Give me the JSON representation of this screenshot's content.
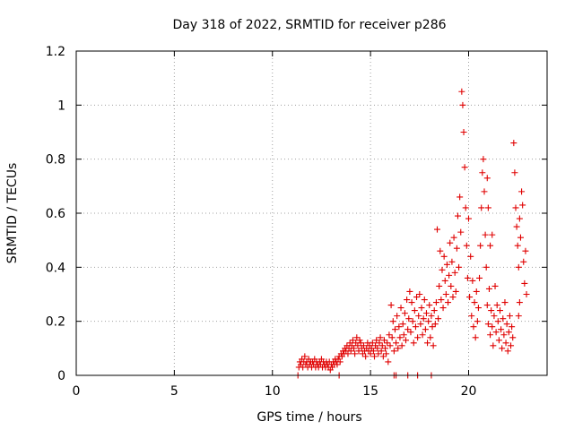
{
  "chart_data": {
    "type": "scatter",
    "title": "Day 318 of 2022, SRMTID for receiver p286",
    "xlabel": "GPS time / hours",
    "ylabel": "SRMTID / TECUs",
    "xlim": [
      0,
      24
    ],
    "ylim": [
      0,
      1.2
    ],
    "xticks": [
      0,
      5,
      10,
      15,
      20
    ],
    "xtick_labels": [
      "0",
      "5",
      "10",
      "15",
      "20"
    ],
    "yticks": [
      0,
      0.2,
      0.4,
      0.6,
      0.8,
      1.0,
      1.2
    ],
    "ytick_labels": [
      "0",
      "0.2",
      "0.4",
      "0.6",
      "0.8",
      "1",
      "1.2"
    ],
    "grid": true,
    "marker": "+",
    "color": "#e00000",
    "series": [
      {
        "name": "SRMTID",
        "points": [
          [
            11.3,
            0.0
          ],
          [
            11.35,
            0.03
          ],
          [
            11.4,
            0.05
          ],
          [
            11.45,
            0.04
          ],
          [
            11.5,
            0.06
          ],
          [
            11.55,
            0.03
          ],
          [
            11.6,
            0.05
          ],
          [
            11.65,
            0.07
          ],
          [
            11.7,
            0.04
          ],
          [
            11.75,
            0.05
          ],
          [
            11.8,
            0.03
          ],
          [
            11.85,
            0.06
          ],
          [
            11.9,
            0.04
          ],
          [
            11.95,
            0.05
          ],
          [
            12.0,
            0.03
          ],
          [
            12.05,
            0.05
          ],
          [
            12.1,
            0.04
          ],
          [
            12.15,
            0.06
          ],
          [
            12.2,
            0.03
          ],
          [
            12.25,
            0.05
          ],
          [
            12.3,
            0.04
          ],
          [
            12.35,
            0.03
          ],
          [
            12.4,
            0.05
          ],
          [
            12.45,
            0.04
          ],
          [
            12.5,
            0.06
          ],
          [
            12.55,
            0.03
          ],
          [
            12.6,
            0.05
          ],
          [
            12.65,
            0.04
          ],
          [
            12.7,
            0.03
          ],
          [
            12.75,
            0.05
          ],
          [
            12.8,
            0.04
          ],
          [
            12.85,
            0.03
          ],
          [
            12.9,
            0.05
          ],
          [
            12.95,
            0.02
          ],
          [
            13.0,
            0.04
          ],
          [
            13.05,
            0.03
          ],
          [
            13.1,
            0.05
          ],
          [
            13.15,
            0.04
          ],
          [
            13.2,
            0.06
          ],
          [
            13.25,
            0.05
          ],
          [
            13.3,
            0.04
          ],
          [
            13.35,
            0.06
          ],
          [
            13.4,
            0.07
          ],
          [
            13.45,
            0.05
          ],
          [
            13.5,
            0.08
          ],
          [
            13.55,
            0.07
          ],
          [
            13.6,
            0.09
          ],
          [
            13.65,
            0.08
          ],
          [
            13.7,
            0.1
          ],
          [
            13.75,
            0.09
          ],
          [
            13.8,
            0.11
          ],
          [
            13.85,
            0.08
          ],
          [
            13.9,
            0.1
          ],
          [
            13.95,
            0.12
          ],
          [
            14.0,
            0.09
          ],
          [
            14.05,
            0.11
          ],
          [
            14.1,
            0.13
          ],
          [
            14.15,
            0.1
          ],
          [
            14.2,
            0.08
          ],
          [
            14.25,
            0.12
          ],
          [
            14.3,
            0.14
          ],
          [
            14.35,
            0.11
          ],
          [
            14.4,
            0.09
          ],
          [
            14.45,
            0.13
          ],
          [
            14.5,
            0.12
          ],
          [
            14.55,
            0.1
          ],
          [
            14.6,
            0.08
          ],
          [
            14.65,
            0.11
          ],
          [
            14.7,
            0.09
          ],
          [
            14.75,
            0.07
          ],
          [
            14.8,
            0.1
          ],
          [
            14.85,
            0.12
          ],
          [
            14.9,
            0.09
          ],
          [
            14.95,
            0.11
          ],
          [
            15.0,
            0.08
          ],
          [
            15.05,
            0.1
          ],
          [
            15.1,
            0.12
          ],
          [
            15.15,
            0.09
          ],
          [
            15.2,
            0.07
          ],
          [
            15.25,
            0.11
          ],
          [
            15.3,
            0.13
          ],
          [
            15.35,
            0.1
          ],
          [
            15.4,
            0.08
          ],
          [
            15.45,
            0.12
          ],
          [
            15.5,
            0.14
          ],
          [
            15.55,
            0.09
          ],
          [
            15.6,
            0.11
          ],
          [
            15.65,
            0.07
          ],
          [
            15.7,
            0.13
          ],
          [
            15.75,
            0.1
          ],
          [
            15.8,
            0.08
          ],
          [
            15.85,
            0.12
          ],
          [
            15.9,
            0.05
          ],
          [
            15.95,
            0.15
          ],
          [
            16.0,
            0.11
          ],
          [
            16.05,
            0.26
          ],
          [
            16.1,
            0.14
          ],
          [
            16.15,
            0.2
          ],
          [
            16.2,
            0.09
          ],
          [
            16.25,
            0.17
          ],
          [
            16.3,
            0.12
          ],
          [
            16.35,
            0.22
          ],
          [
            16.4,
            0.1
          ],
          [
            16.45,
            0.18
          ],
          [
            16.5,
            0.14
          ],
          [
            16.55,
            0.25
          ],
          [
            16.6,
            0.11
          ],
          [
            16.65,
            0.19
          ],
          [
            16.7,
            0.15
          ],
          [
            16.75,
            0.23
          ],
          [
            16.8,
            0.13
          ],
          [
            16.85,
            0.28
          ],
          [
            16.9,
            0.17
          ],
          [
            16.95,
            0.21
          ],
          [
            17.0,
            0.31
          ],
          [
            17.05,
            0.16
          ],
          [
            17.1,
            0.27
          ],
          [
            17.15,
            0.2
          ],
          [
            17.2,
            0.12
          ],
          [
            17.25,
            0.24
          ],
          [
            17.3,
            0.18
          ],
          [
            17.35,
            0.29
          ],
          [
            17.4,
            0.14
          ],
          [
            17.45,
            0.22
          ],
          [
            17.5,
            0.3
          ],
          [
            17.55,
            0.19
          ],
          [
            17.6,
            0.25
          ],
          [
            17.65,
            0.15
          ],
          [
            17.7,
            0.21
          ],
          [
            17.75,
            0.28
          ],
          [
            17.8,
            0.17
          ],
          [
            17.85,
            0.23
          ],
          [
            17.9,
            0.12
          ],
          [
            17.95,
            0.2
          ],
          [
            18.0,
            0.26
          ],
          [
            18.05,
            0.14
          ],
          [
            18.1,
            0.22
          ],
          [
            18.15,
            0.18
          ],
          [
            18.2,
            0.11
          ],
          [
            18.25,
            0.24
          ],
          [
            18.3,
            0.19
          ],
          [
            18.35,
            0.27
          ],
          [
            18.4,
            0.54
          ],
          [
            18.45,
            0.21
          ],
          [
            18.5,
            0.33
          ],
          [
            18.55,
            0.46
          ],
          [
            18.6,
            0.28
          ],
          [
            18.65,
            0.39
          ],
          [
            18.7,
            0.25
          ],
          [
            18.75,
            0.44
          ],
          [
            18.8,
            0.35
          ],
          [
            18.85,
            0.3
          ],
          [
            18.9,
            0.41
          ],
          [
            18.95,
            0.27
          ],
          [
            19.0,
            0.37
          ],
          [
            19.05,
            0.49
          ],
          [
            19.1,
            0.33
          ],
          [
            19.15,
            0.42
          ],
          [
            19.2,
            0.29
          ],
          [
            19.25,
            0.51
          ],
          [
            19.3,
            0.38
          ],
          [
            19.35,
            0.31
          ],
          [
            19.4,
            0.47
          ],
          [
            19.45,
            0.59
          ],
          [
            19.5,
            0.4
          ],
          [
            19.55,
            0.66
          ],
          [
            19.6,
            0.53
          ],
          [
            19.65,
            1.05
          ],
          [
            19.7,
            1.0
          ],
          [
            19.75,
            0.9
          ],
          [
            19.8,
            0.77
          ],
          [
            19.85,
            0.62
          ],
          [
            19.9,
            0.48
          ],
          [
            19.95,
            0.36
          ],
          [
            20.0,
            0.58
          ],
          [
            20.05,
            0.29
          ],
          [
            20.1,
            0.44
          ],
          [
            20.15,
            0.22
          ],
          [
            20.2,
            0.35
          ],
          [
            20.25,
            0.18
          ],
          [
            20.3,
            0.27
          ],
          [
            20.35,
            0.14
          ],
          [
            20.4,
            0.31
          ],
          [
            20.45,
            0.2
          ],
          [
            20.5,
            0.25
          ],
          [
            20.55,
            0.36
          ],
          [
            20.6,
            0.48
          ],
          [
            20.65,
            0.62
          ],
          [
            20.7,
            0.75
          ],
          [
            20.75,
            0.8
          ],
          [
            20.8,
            0.68
          ],
          [
            20.85,
            0.52
          ],
          [
            20.9,
            0.4
          ],
          [
            20.95,
            0.26
          ],
          [
            21.0,
            0.19
          ],
          [
            21.05,
            0.32
          ],
          [
            21.1,
            0.15
          ],
          [
            21.15,
            0.24
          ],
          [
            21.2,
            0.18
          ],
          [
            21.25,
            0.11
          ],
          [
            21.3,
            0.22
          ],
          [
            21.35,
            0.33
          ],
          [
            21.4,
            0.16
          ],
          [
            21.45,
            0.26
          ],
          [
            21.5,
            0.2
          ],
          [
            21.55,
            0.13
          ],
          [
            21.6,
            0.24
          ],
          [
            21.65,
            0.17
          ],
          [
            21.7,
            0.1
          ],
          [
            21.75,
            0.21
          ],
          [
            21.8,
            0.15
          ],
          [
            21.85,
            0.27
          ],
          [
            21.9,
            0.12
          ],
          [
            21.95,
            0.19
          ],
          [
            22.0,
            0.09
          ],
          [
            22.05,
            0.16
          ],
          [
            22.1,
            0.22
          ],
          [
            22.15,
            0.11
          ],
          [
            22.2,
            0.18
          ],
          [
            22.25,
            0.14
          ],
          [
            22.3,
            0.86
          ],
          [
            22.35,
            0.75
          ],
          [
            22.4,
            0.62
          ],
          [
            22.45,
            0.55
          ],
          [
            22.5,
            0.48
          ],
          [
            22.55,
            0.4
          ],
          [
            22.6,
            0.58
          ],
          [
            22.65,
            0.51
          ],
          [
            22.7,
            0.68
          ],
          [
            22.75,
            0.63
          ],
          [
            22.8,
            0.42
          ],
          [
            22.85,
            0.34
          ],
          [
            22.9,
            0.46
          ],
          [
            22.95,
            0.3
          ],
          [
            22.55,
            0.22
          ],
          [
            22.6,
            0.27
          ],
          [
            21.0,
            0.62
          ],
          [
            21.1,
            0.48
          ],
          [
            21.2,
            0.52
          ],
          [
            20.95,
            0.73
          ],
          [
            13.4,
            0.0
          ],
          [
            16.2,
            0.0
          ],
          [
            16.9,
            0.0
          ],
          [
            17.4,
            0.0
          ],
          [
            18.1,
            0.0
          ],
          [
            16.3,
            0.0
          ]
        ]
      }
    ]
  }
}
